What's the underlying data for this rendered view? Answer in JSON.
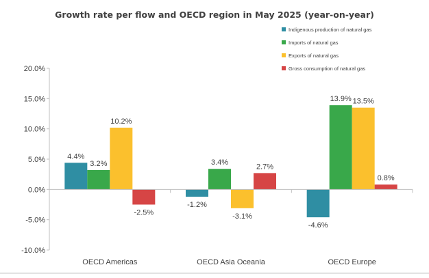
{
  "chart_data": {
    "type": "bar",
    "title": "Growth rate per flow and OECD region in May 2025 (year-on-year)",
    "categories": [
      "OECD Americas",
      "OECD Asia Oceania",
      "OECD Europe"
    ],
    "series": [
      {
        "name": "Indigenous production of natural gas",
        "color": "#2f8ea3",
        "values": [
          4.4,
          -1.2,
          -4.6
        ],
        "labels": [
          "4.4%",
          "-1.2%",
          "-4.6%"
        ]
      },
      {
        "name": "Imports of natural gas",
        "color": "#39a84a",
        "values": [
          3.2,
          3.4,
          13.9
        ],
        "labels": [
          "3.2%",
          "3.4%",
          "13.9%"
        ]
      },
      {
        "name": "Exports of natural gas",
        "color": "#fbc02d",
        "values": [
          10.2,
          -3.1,
          13.5
        ],
        "labels": [
          "10.2%",
          "-3.1%",
          "13.5%"
        ]
      },
      {
        "name": "Gross consumption of natural gas",
        "color": "#d64545",
        "values": [
          -2.5,
          2.7,
          0.8
        ],
        "labels": [
          "-2.5%",
          "2.7%",
          "0.8%"
        ]
      }
    ],
    "ylim": [
      -10,
      20
    ],
    "yticks": [
      20,
      15,
      10,
      5,
      0,
      -5,
      -10
    ],
    "ytick_labels": [
      "20.0%",
      "15.0%",
      "10.0%",
      "5.0%",
      "0.0%",
      "-5.0%",
      "-10.0%"
    ],
    "xlabel": "",
    "ylabel": "",
    "grid": false,
    "legend_position": "top-right"
  }
}
